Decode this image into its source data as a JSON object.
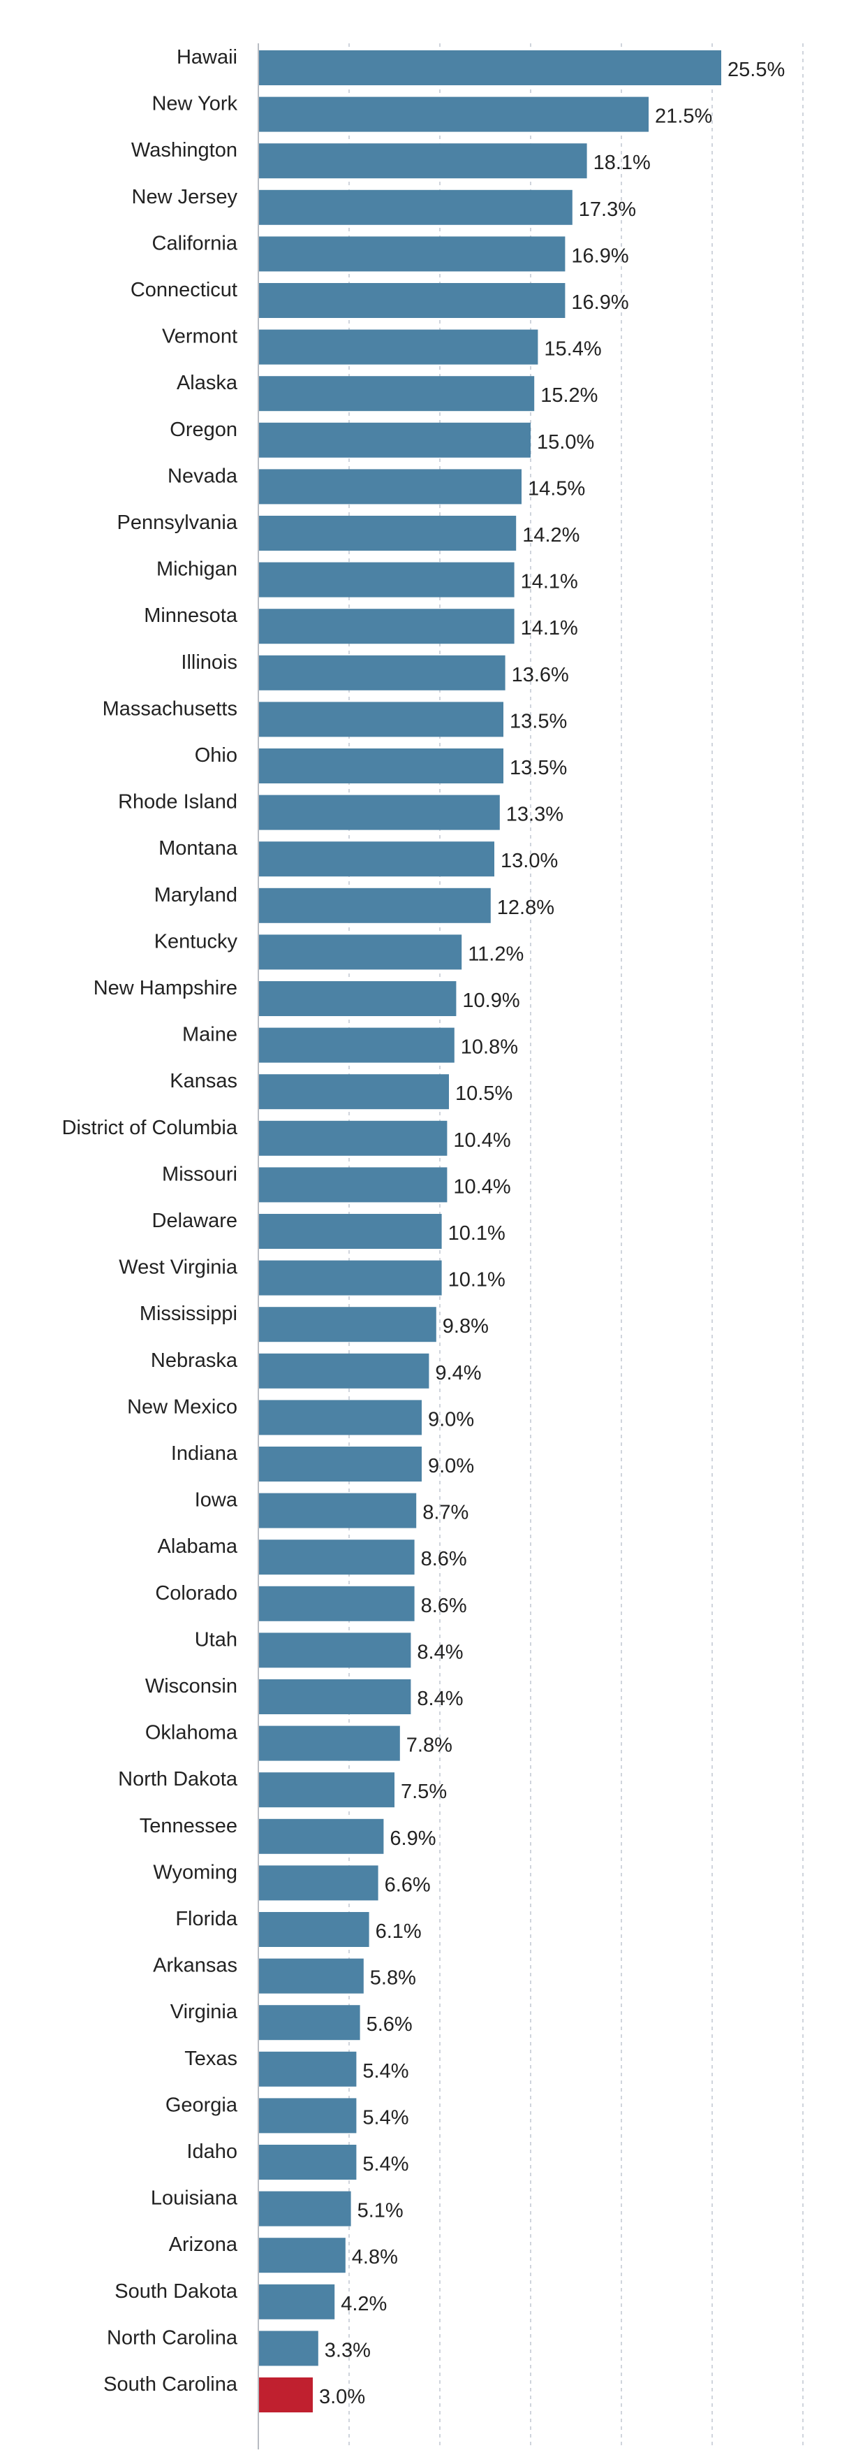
{
  "chart_data": {
    "type": "bar",
    "orientation": "horizontal",
    "categories": [
      "Hawaii",
      "New York",
      "Washington",
      "New Jersey",
      "California",
      "Connecticut",
      "Vermont",
      "Alaska",
      "Oregon",
      "Nevada",
      "Pennsylvania",
      "Michigan",
      "Minnesota",
      "Illinois",
      "Massachusetts",
      "Ohio",
      "Rhode Island",
      "Montana",
      "Maryland",
      "Kentucky",
      "New Hampshire",
      "Maine",
      "Kansas",
      "District of Columbia",
      "Missouri",
      "Delaware",
      "West Virginia",
      "Mississippi",
      "Nebraska",
      "New Mexico",
      "Indiana",
      "Iowa",
      "Alabama",
      "Colorado",
      "Utah",
      "Wisconsin",
      "Oklahoma",
      "North Dakota",
      "Tennessee",
      "Wyoming",
      "Florida",
      "Arkansas",
      "Virginia",
      "Texas",
      "Georgia",
      "Idaho",
      "Louisiana",
      "Arizona",
      "South Dakota",
      "North Carolina",
      "South Carolina"
    ],
    "values": [
      25.5,
      21.5,
      18.1,
      17.3,
      16.9,
      16.9,
      15.4,
      15.2,
      15.0,
      14.5,
      14.2,
      14.1,
      14.1,
      13.6,
      13.5,
      13.5,
      13.3,
      13.0,
      12.8,
      11.2,
      10.9,
      10.8,
      10.5,
      10.4,
      10.4,
      10.1,
      10.1,
      9.8,
      9.4,
      9.0,
      9.0,
      8.7,
      8.6,
      8.6,
      8.4,
      8.4,
      7.8,
      7.5,
      6.9,
      6.6,
      6.1,
      5.8,
      5.6,
      5.4,
      5.4,
      5.4,
      5.1,
      4.8,
      4.2,
      3.3,
      3.0
    ],
    "value_labels": [
      "25.5%",
      "21.5%",
      "18.1%",
      "17.3%",
      "16.9%",
      "16.9%",
      "15.4%",
      "15.2%",
      "15.0%",
      "14.5%",
      "14.2%",
      "14.1%",
      "14.1%",
      "13.6%",
      "13.5%",
      "13.5%",
      "13.3%",
      "13.0%",
      "12.8%",
      "11.2%",
      "10.9%",
      "10.8%",
      "10.5%",
      "10.4%",
      "10.4%",
      "10.1%",
      "10.1%",
      "9.8%",
      "9.4%",
      "9.0%",
      "9.0%",
      "8.7%",
      "8.6%",
      "8.6%",
      "8.4%",
      "8.4%",
      "7.8%",
      "7.5%",
      "6.9%",
      "6.6%",
      "6.1%",
      "5.8%",
      "5.6%",
      "5.4%",
      "5.4%",
      "5.4%",
      "5.1%",
      "4.8%",
      "4.2%",
      "3.3%",
      "3.0%"
    ],
    "highlight_category": "South Carolina",
    "colors": {
      "bar": "#4c82a4",
      "highlight": "#c0202f"
    },
    "xlim": [
      0,
      30
    ],
    "gridlines_at": [
      0,
      5,
      10,
      15,
      20,
      25,
      30
    ],
    "grid": true,
    "title": "",
    "xlabel": "",
    "ylabel": "",
    "legend": "none"
  }
}
